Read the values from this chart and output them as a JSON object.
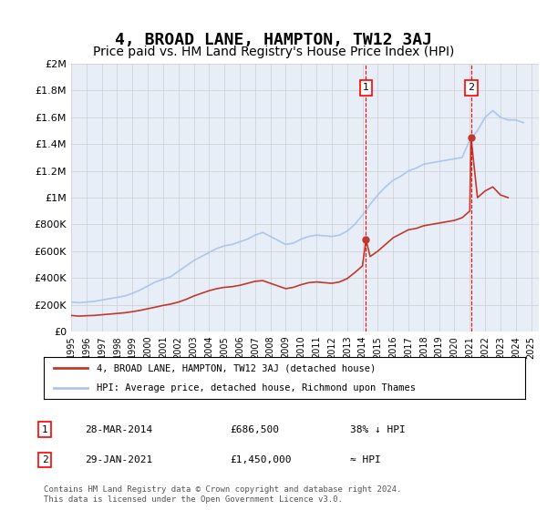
{
  "title": "4, BROAD LANE, HAMPTON, TW12 3AJ",
  "subtitle": "Price paid vs. HM Land Registry's House Price Index (HPI)",
  "title_fontsize": 13,
  "subtitle_fontsize": 10,
  "hpi_color": "#aec6e8",
  "price_color": "#c0392b",
  "bg_color": "#ffffff",
  "plot_bg_color": "#e8eef8",
  "grid_color": "#cccccc",
  "ylim": [
    0,
    2000000
  ],
  "legend_label_price": "4, BROAD LANE, HAMPTON, TW12 3AJ (detached house)",
  "legend_label_hpi": "HPI: Average price, detached house, Richmond upon Thames",
  "annotation1_label": "1",
  "annotation1_date": "28-MAR-2014",
  "annotation1_price": "£686,500",
  "annotation1_note": "38% ↓ HPI",
  "annotation2_label": "2",
  "annotation2_date": "29-JAN-2021",
  "annotation2_price": "£1,450,000",
  "annotation2_note": "≈ HPI",
  "footer1": "Contains HM Land Registry data © Crown copyright and database right 2024.",
  "footer2": "This data is licensed under the Open Government Licence v3.0.",
  "sale1_year": 2014.23,
  "sale1_price": 686500,
  "sale2_year": 2021.08,
  "sale2_price": 1450000,
  "hpi_x": [
    1995.0,
    1995.5,
    1996.0,
    1996.5,
    1997.0,
    1997.5,
    1998.0,
    1998.5,
    1999.0,
    1999.5,
    2000.0,
    2000.5,
    2001.0,
    2001.5,
    2002.0,
    2002.5,
    2003.0,
    2003.5,
    2004.0,
    2004.5,
    2005.0,
    2005.5,
    2006.0,
    2006.5,
    2007.0,
    2007.5,
    2008.0,
    2008.5,
    2009.0,
    2009.5,
    2010.0,
    2010.5,
    2011.0,
    2011.5,
    2012.0,
    2012.5,
    2013.0,
    2013.5,
    2014.0,
    2014.5,
    2015.0,
    2015.5,
    2016.0,
    2016.5,
    2017.0,
    2017.5,
    2018.0,
    2018.5,
    2019.0,
    2019.5,
    2020.0,
    2020.5,
    2021.0,
    2021.5,
    2022.0,
    2022.5,
    2023.0,
    2023.5,
    2024.0,
    2024.5
  ],
  "hpi_y": [
    220000,
    215000,
    220000,
    225000,
    235000,
    245000,
    255000,
    265000,
    285000,
    310000,
    340000,
    370000,
    390000,
    410000,
    450000,
    490000,
    530000,
    560000,
    590000,
    620000,
    640000,
    650000,
    670000,
    690000,
    720000,
    740000,
    710000,
    680000,
    650000,
    660000,
    690000,
    710000,
    720000,
    715000,
    710000,
    720000,
    750000,
    800000,
    870000,
    950000,
    1020000,
    1080000,
    1130000,
    1160000,
    1200000,
    1220000,
    1250000,
    1260000,
    1270000,
    1280000,
    1290000,
    1300000,
    1430000,
    1500000,
    1600000,
    1650000,
    1600000,
    1580000,
    1580000,
    1560000
  ],
  "price_x": [
    1995.0,
    1995.5,
    1996.0,
    1996.5,
    1997.0,
    1997.5,
    1998.0,
    1998.5,
    1999.0,
    1999.5,
    2000.0,
    2000.5,
    2001.0,
    2001.5,
    2002.0,
    2002.5,
    2003.0,
    2003.5,
    2004.0,
    2004.5,
    2005.0,
    2005.5,
    2006.0,
    2006.5,
    2007.0,
    2007.5,
    2008.0,
    2008.5,
    2009.0,
    2009.5,
    2010.0,
    2010.5,
    2011.0,
    2011.5,
    2012.0,
    2012.5,
    2013.0,
    2013.5,
    2014.0,
    2014.23,
    2014.5,
    2015.0,
    2015.5,
    2016.0,
    2016.5,
    2017.0,
    2017.5,
    2018.0,
    2018.5,
    2019.0,
    2019.5,
    2020.0,
    2020.5,
    2021.0,
    2021.08,
    2021.5,
    2022.0,
    2022.5,
    2023.0,
    2023.5
  ],
  "price_y": [
    120000,
    115000,
    118000,
    120000,
    125000,
    130000,
    135000,
    140000,
    148000,
    158000,
    170000,
    182000,
    195000,
    205000,
    220000,
    240000,
    265000,
    285000,
    305000,
    320000,
    330000,
    335000,
    345000,
    360000,
    375000,
    380000,
    360000,
    340000,
    320000,
    330000,
    350000,
    365000,
    370000,
    365000,
    360000,
    370000,
    395000,
    440000,
    490000,
    686500,
    560000,
    600000,
    650000,
    700000,
    730000,
    760000,
    770000,
    790000,
    800000,
    810000,
    820000,
    830000,
    850000,
    900000,
    1450000,
    1000000,
    1050000,
    1080000,
    1020000,
    1000000
  ]
}
